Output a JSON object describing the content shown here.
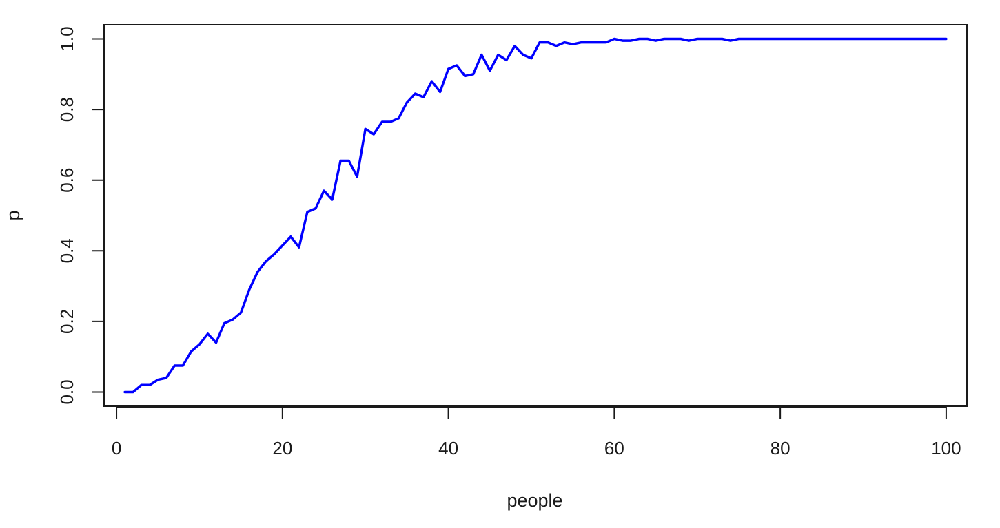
{
  "chart_data": {
    "type": "line",
    "title": "",
    "xlabel": "people",
    "ylabel": "p",
    "xlim": [
      -1.5,
      102.5
    ],
    "ylim": [
      -0.04,
      1.04
    ],
    "xticks": [
      0,
      20,
      40,
      60,
      80,
      100
    ],
    "yticks": [
      0.0,
      0.2,
      0.4,
      0.6,
      0.8,
      1.0
    ],
    "xtick_labels": [
      "0",
      "20",
      "40",
      "60",
      "80",
      "100"
    ],
    "ytick_labels": [
      "0.0",
      "0.2",
      "0.4",
      "0.6",
      "0.8",
      "1.0"
    ],
    "grid": false,
    "legend": "none",
    "line_color": "#0000ff",
    "series": [
      {
        "x": [
          1,
          2,
          3,
          4,
          5,
          6,
          7,
          8,
          9,
          10,
          11,
          12,
          13,
          14,
          15,
          16,
          17,
          18,
          19,
          20,
          21,
          22,
          23,
          24,
          25,
          26,
          27,
          28,
          29,
          30,
          31,
          32,
          33,
          34,
          35,
          36,
          37,
          38,
          39,
          40,
          41,
          42,
          43,
          44,
          45,
          46,
          47,
          48,
          49,
          50,
          51,
          52,
          53,
          54,
          55,
          56,
          57,
          58,
          59,
          60,
          61,
          62,
          63,
          64,
          65,
          66,
          67,
          68,
          69,
          70,
          71,
          72,
          73,
          74,
          75,
          76,
          77,
          78,
          79,
          80,
          81,
          82,
          83,
          84,
          85,
          86,
          87,
          88,
          89,
          90,
          91,
          92,
          93,
          94,
          95,
          96,
          97,
          98,
          99,
          100
        ],
        "y": [
          0.0,
          0.0,
          0.02,
          0.02,
          0.035,
          0.04,
          0.075,
          0.075,
          0.115,
          0.135,
          0.165,
          0.14,
          0.195,
          0.205,
          0.225,
          0.29,
          0.34,
          0.37,
          0.39,
          0.415,
          0.44,
          0.41,
          0.51,
          0.52,
          0.57,
          0.545,
          0.655,
          0.655,
          0.61,
          0.745,
          0.73,
          0.765,
          0.765,
          0.775,
          0.82,
          0.845,
          0.835,
          0.88,
          0.85,
          0.915,
          0.925,
          0.895,
          0.9,
          0.955,
          0.91,
          0.955,
          0.94,
          0.98,
          0.955,
          0.945,
          0.99,
          0.99,
          0.98,
          0.99,
          0.985,
          0.99,
          0.99,
          0.99,
          0.99,
          1.0,
          0.995,
          0.995,
          1.0,
          1.0,
          0.995,
          1.0,
          1.0,
          1.0,
          0.995,
          1.0,
          1.0,
          1.0,
          1.0,
          0.995,
          1.0,
          1.0,
          1.0,
          1.0,
          1.0,
          1.0,
          1.0,
          1.0,
          1.0,
          1.0,
          1.0,
          1.0,
          1.0,
          1.0,
          1.0,
          1.0,
          1.0,
          1.0,
          1.0,
          1.0,
          1.0,
          1.0,
          1.0,
          1.0,
          1.0,
          1.0
        ]
      }
    ]
  }
}
